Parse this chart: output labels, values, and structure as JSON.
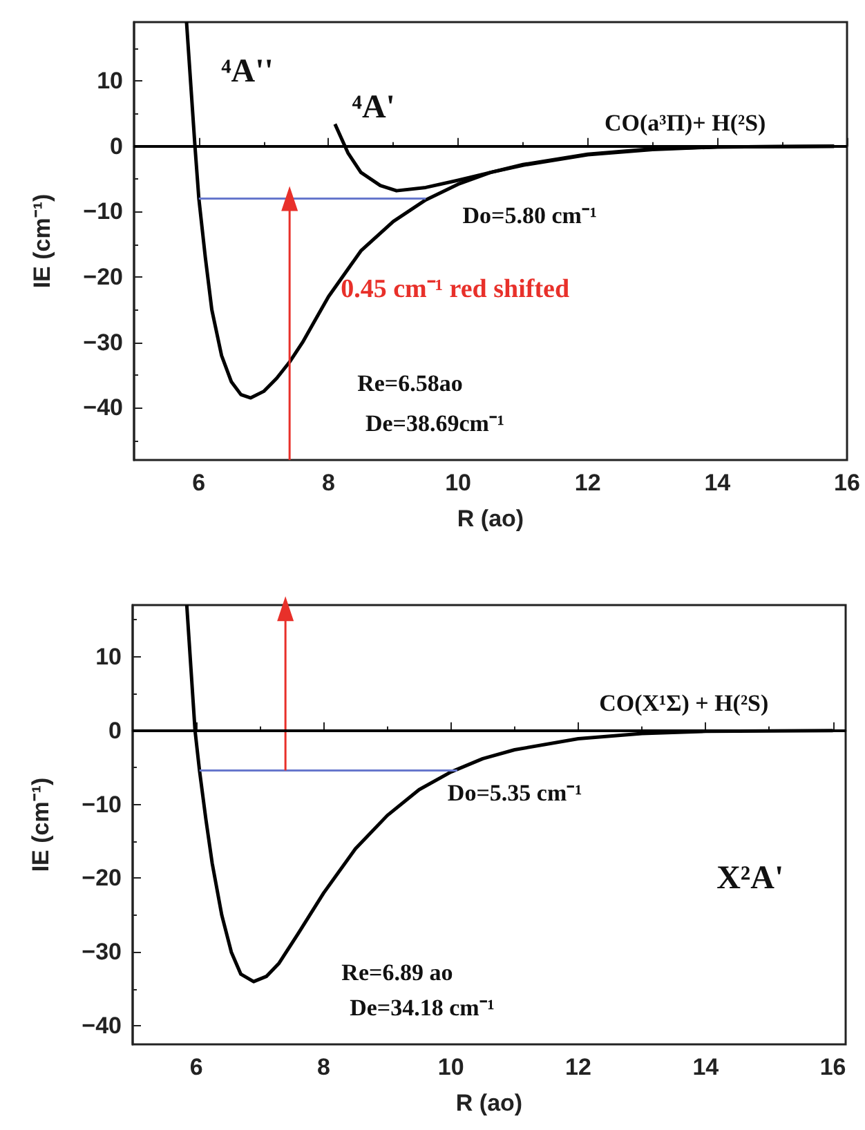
{
  "chart_data": [
    {
      "type": "line",
      "xlabel": "R (ao)",
      "ylabel": "IE (cm⁻¹)",
      "xlim": [
        5,
        16
      ],
      "ylim": [
        -48,
        19
      ],
      "xticks": [
        6,
        8,
        10,
        12,
        14,
        16
      ],
      "yticks": [
        -40,
        -30,
        -20,
        -10,
        0,
        10
      ],
      "ref_lines": [
        {
          "axis": "y",
          "value": 0,
          "color": "#000000"
        }
      ],
      "series": [
        {
          "color": "#000000",
          "x": [
            5.81,
            5.94,
            6.0,
            6.1,
            6.2,
            6.35,
            6.5,
            6.65,
            6.8,
            7.0,
            7.2,
            7.4,
            7.6,
            7.8,
            8.0,
            8.5,
            9.0,
            9.5,
            10.0,
            10.5,
            11.0,
            12.0,
            13.0,
            14.0,
            15.8
          ],
          "values": [
            19,
            0,
            -8,
            -17,
            -25,
            -32,
            -36,
            -38,
            -38.5,
            -37.5,
            -35.5,
            -33,
            -30,
            -26.5,
            -23,
            -16,
            -11.5,
            -8.2,
            -5.8,
            -4,
            -2.8,
            -1.2,
            -0.4,
            -0.1,
            0
          ]
        },
        {
          "color": "#000000",
          "x": [
            8.1,
            8.3,
            8.5,
            8.8,
            9.05,
            9.5,
            10.0,
            10.5,
            11.0,
            12.0,
            13.0,
            14.0,
            15.8
          ],
          "values": [
            3.4,
            -1,
            -4,
            -6,
            -6.8,
            -6.3,
            -5.2,
            -4,
            -2.9,
            -1.3,
            -0.5,
            -0.1,
            0
          ]
        },
        {
          "color": "#6677cc",
          "x": [
            6.0,
            9.5
          ],
          "values": [
            -8,
            -8
          ]
        },
        {
          "name": "0.45 cm⁻¹ red shifted",
          "color": "#e8302a",
          "marker": "triangle",
          "x": [
            7.4,
            7.4
          ],
          "values": [
            -48,
            -8
          ]
        }
      ],
      "annotations": [
        "⁴A''",
        "⁴A'",
        "CO(a³Π)+ H(²S)",
        "Do=5.80 cm⁻¹",
        "Re=6.58ao",
        "De=38.69cm⁻¹"
      ]
    },
    {
      "type": "line",
      "xlabel": "R (ao)",
      "ylabel": "IE (cm⁻¹)",
      "xlim": [
        5,
        16.2
      ],
      "ylim": [
        -42.5,
        17
      ],
      "xticks": [
        6,
        8,
        10,
        12,
        14,
        16
      ],
      "yticks": [
        -40,
        -30,
        -20,
        -10,
        0,
        10
      ],
      "ref_lines": [
        {
          "axis": "y",
          "value": 0,
          "color": "#000000"
        }
      ],
      "series": [
        {
          "color": "#000000",
          "x": [
            5.85,
            5.98,
            6.05,
            6.15,
            6.25,
            6.4,
            6.55,
            6.7,
            6.9,
            7.1,
            7.3,
            7.6,
            8.0,
            8.5,
            9.0,
            9.5,
            10.0,
            10.5,
            11.0,
            12.0,
            13.0,
            14.0,
            16.0
          ],
          "values": [
            17,
            0,
            -5.4,
            -12,
            -18,
            -25,
            -30,
            -33,
            -34,
            -33.3,
            -31.5,
            -27.5,
            -22,
            -16,
            -11.5,
            -8,
            -5.6,
            -3.8,
            -2.6,
            -1.1,
            -0.4,
            -0.1,
            0
          ]
        },
        {
          "color": "#6677cc",
          "x": [
            6.05,
            10.1
          ],
          "values": [
            -5.4,
            -5.4
          ]
        },
        {
          "color": "#e8302a",
          "marker": "triangle",
          "x": [
            7.4,
            7.4
          ],
          "values": [
            -5.4,
            16.5
          ]
        }
      ],
      "annotations": [
        "CO(X¹Σ) + H(²S)",
        "Do=5.35 cm⁻¹",
        "X²A'",
        "Re=6.89 ao",
        "De=34.18 cm⁻¹"
      ]
    }
  ]
}
